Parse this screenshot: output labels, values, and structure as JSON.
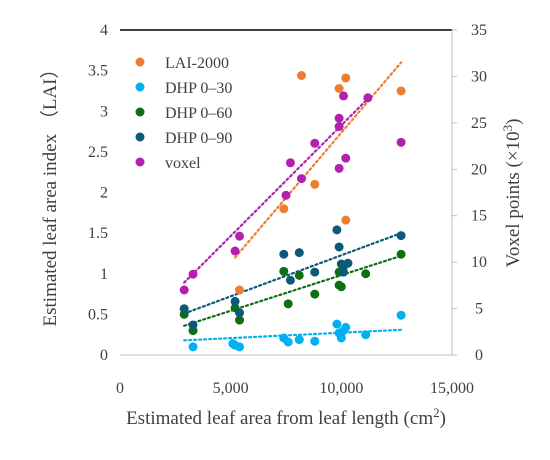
{
  "chart_data": {
    "type": "scatter",
    "xlabel": "Estimated leaf area from leaf length (cm²)",
    "ylabel_left": "Estimated leaf area index （LAI）",
    "ylabel_right": "Voxel points (×10³)",
    "xlim": [
      0,
      15000
    ],
    "ylim_left": [
      0,
      4
    ],
    "ylim_right": [
      0,
      35
    ],
    "x_ticks": [
      0,
      5000,
      10000,
      15000
    ],
    "x_tick_labels": [
      "0",
      "5,000",
      "10,000",
      "15,000"
    ],
    "y_left_ticks": [
      0,
      0.5,
      1,
      1.5,
      2,
      2.5,
      3,
      3.5,
      4
    ],
    "y_left_tick_labels": [
      "0",
      "0.5",
      "1",
      "1.5",
      "2",
      "2.5",
      "3",
      "3.5",
      "4"
    ],
    "y_right_ticks": [
      0,
      5,
      10,
      15,
      20,
      25,
      30,
      35
    ],
    "y_right_tick_labels": [
      "0",
      "5",
      "10",
      "15",
      "20",
      "25",
      "30",
      "35"
    ],
    "grid": false,
    "legend_position": "top-left",
    "trendlines": "linear, dotted",
    "series": [
      {
        "name": "LAI-2000",
        "color": "#ed7d31",
        "axis": "left",
        "trend": [
          [
            5200,
            1.2
          ],
          [
            12700,
            3.6
          ]
        ],
        "points": [
          [
            5400,
            0.8
          ],
          [
            7400,
            1.8
          ],
          [
            8200,
            3.44
          ],
          [
            8800,
            2.1
          ],
          [
            9900,
            3.28
          ],
          [
            10200,
            3.41
          ],
          [
            10200,
            1.66
          ],
          [
            12700,
            3.25
          ]
        ]
      },
      {
        "name": "DHP 0–30",
        "color": "#00b0f0",
        "axis": "left",
        "trend": [
          [
            2900,
            0.18
          ],
          [
            12700,
            0.31
          ]
        ],
        "points": [
          [
            3300,
            0.1
          ],
          [
            5100,
            0.14
          ],
          [
            5200,
            0.12
          ],
          [
            5400,
            0.1
          ],
          [
            7400,
            0.21
          ],
          [
            7600,
            0.16
          ],
          [
            8100,
            0.19
          ],
          [
            8800,
            0.17
          ],
          [
            9800,
            0.38
          ],
          [
            9900,
            0.27
          ],
          [
            10000,
            0.21
          ],
          [
            10100,
            0.3
          ],
          [
            10200,
            0.34
          ],
          [
            11100,
            0.25
          ],
          [
            12700,
            0.49
          ]
        ]
      },
      {
        "name": "DHP 0–60",
        "color": "#0e6e14",
        "axis": "left",
        "trend": [
          [
            2900,
            0.36
          ],
          [
            12700,
            1.22
          ]
        ],
        "points": [
          [
            2900,
            0.5
          ],
          [
            3300,
            0.3
          ],
          [
            5200,
            0.58
          ],
          [
            5400,
            0.43
          ],
          [
            7400,
            1.03
          ],
          [
            7600,
            0.63
          ],
          [
            8100,
            0.98
          ],
          [
            8800,
            0.75
          ],
          [
            9900,
            1.02
          ],
          [
            9900,
            0.86
          ],
          [
            10000,
            0.84
          ],
          [
            10100,
            1.09
          ],
          [
            11100,
            1.0
          ],
          [
            12700,
            1.24
          ]
        ]
      },
      {
        "name": "DHP 0–90",
        "color": "#0b5a7a",
        "axis": "left",
        "trend": [
          [
            2900,
            0.51
          ],
          [
            12700,
            1.5
          ]
        ],
        "points": [
          [
            2900,
            0.57
          ],
          [
            3300,
            0.37
          ],
          [
            5200,
            0.66
          ],
          [
            5400,
            0.52
          ],
          [
            7400,
            1.24
          ],
          [
            7700,
            0.92
          ],
          [
            8100,
            1.26
          ],
          [
            8800,
            1.02
          ],
          [
            9800,
            1.54
          ],
          [
            9900,
            1.33
          ],
          [
            10000,
            1.12
          ],
          [
            10100,
            1.02
          ],
          [
            10300,
            1.13
          ],
          [
            12700,
            1.47
          ]
        ]
      },
      {
        "name": "voxel",
        "color": "#b31faf",
        "axis": "right",
        "trend": [
          [
            2900,
            7.8
          ],
          [
            11200,
            27.6
          ]
        ],
        "points": [
          [
            2900,
            7.0
          ],
          [
            3300,
            8.7
          ],
          [
            5200,
            11.2
          ],
          [
            5400,
            12.8
          ],
          [
            7500,
            17.2
          ],
          [
            7700,
            20.7
          ],
          [
            8200,
            19.0
          ],
          [
            8800,
            22.8
          ],
          [
            9900,
            25.5
          ],
          [
            9900,
            24.6
          ],
          [
            9900,
            20.1
          ],
          [
            10100,
            27.9
          ],
          [
            10200,
            21.2
          ],
          [
            11200,
            27.7
          ],
          [
            12700,
            22.9
          ]
        ]
      }
    ]
  }
}
